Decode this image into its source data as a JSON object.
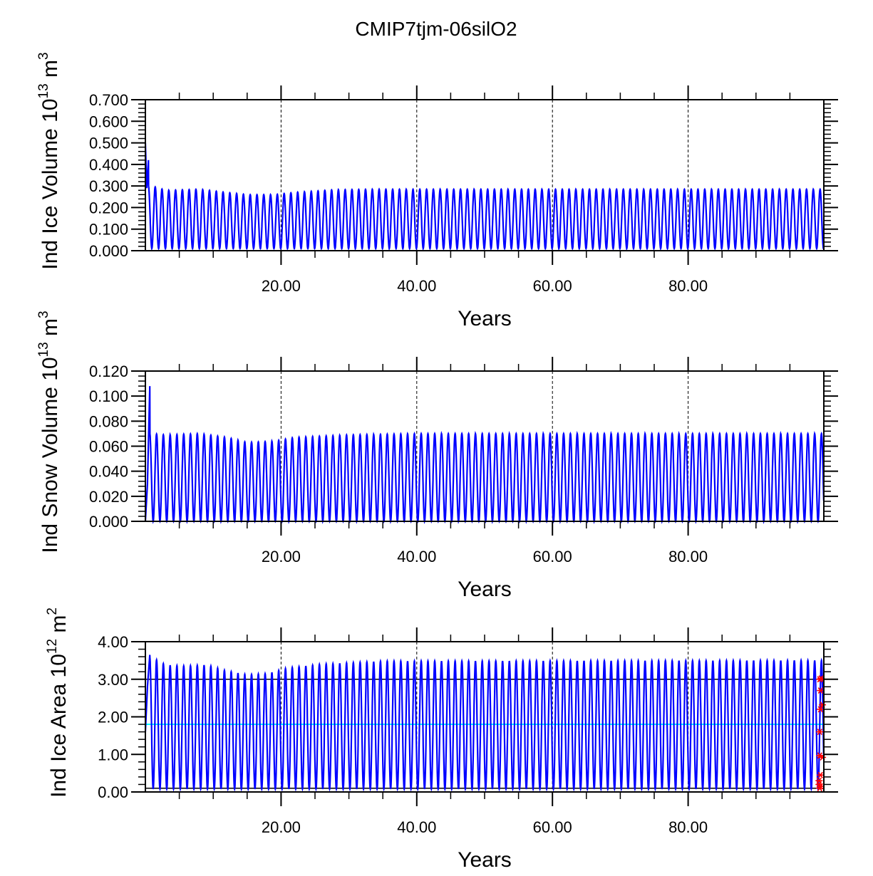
{
  "title": "CMIP7tjm-06silO2",
  "colors": {
    "series": "#0000ff",
    "reference": "#00ffff",
    "markers": "#ff0000",
    "axis": "#000000"
  },
  "chart_data": [
    {
      "type": "line",
      "title": "",
      "xlabel": "Years",
      "ylabel": "Ind Ice Volume 10",
      "ylabel_exp": "13",
      "ylabel_unit": " m",
      "ylabel_unit_exp": "3",
      "xlim": [
        0,
        100
      ],
      "ylim": [
        0,
        0.7
      ],
      "xticks": [
        20,
        40,
        60,
        80
      ],
      "xtick_labels": [
        "20.00",
        "40.00",
        "60.00",
        "80.00"
      ],
      "yticks": [
        0,
        0.1,
        0.2,
        0.3,
        0.4,
        0.5,
        0.6,
        0.7
      ],
      "ytick_labels": [
        "0.000",
        "0.100",
        "0.200",
        "0.300",
        "0.400",
        "0.500",
        "0.600",
        "0.700"
      ],
      "yminor_step": 0.02,
      "grid": "dashed vertical at major x ticks",
      "series": [
        {
          "name": "Ind Ice Volume",
          "seasonal_cycle_per_year": true,
          "start_points": [
            [
              0,
              0.5
            ],
            [
              0.2,
              0.29
            ],
            [
              0.45,
              0.42
            ]
          ],
          "annual_min": 0.01,
          "annual_max_envelope": [
            [
              1,
              0.3
            ],
            [
              3,
              0.28
            ],
            [
              8,
              0.285
            ],
            [
              12,
              0.27
            ],
            [
              15,
              0.26
            ],
            [
              19,
              0.26
            ],
            [
              22,
              0.27
            ],
            [
              28,
              0.283
            ],
            [
              35,
              0.285
            ],
            [
              100,
              0.285
            ]
          ]
        }
      ]
    },
    {
      "type": "line",
      "xlabel": "Years",
      "ylabel": "Ind Snow Volume 10",
      "ylabel_exp": "13",
      "ylabel_unit": " m",
      "ylabel_unit_exp": "3",
      "xlim": [
        0,
        100
      ],
      "ylim": [
        0,
        0.12
      ],
      "xticks": [
        20,
        40,
        60,
        80
      ],
      "xtick_labels": [
        "20.00",
        "40.00",
        "60.00",
        "80.00"
      ],
      "yticks": [
        0,
        0.02,
        0.04,
        0.06,
        0.08,
        0.1,
        0.12
      ],
      "ytick_labels": [
        "0.000",
        "0.020",
        "0.040",
        "0.060",
        "0.080",
        "0.100",
        "0.120"
      ],
      "yminor_step": 0.004,
      "grid": "dashed vertical at major x ticks",
      "series": [
        {
          "name": "Ind Snow Volume",
          "seasonal_cycle_per_year": true,
          "start_points": [
            [
              0,
              0.0
            ],
            [
              0.3,
              0.03
            ],
            [
              0.65,
              0.108
            ]
          ],
          "annual_min": 0.0,
          "annual_max_envelope": [
            [
              1,
              0.07
            ],
            [
              3,
              0.069
            ],
            [
              8,
              0.07
            ],
            [
              12,
              0.067
            ],
            [
              15,
              0.063
            ],
            [
              19,
              0.064
            ],
            [
              22,
              0.067
            ],
            [
              30,
              0.069
            ],
            [
              40,
              0.07
            ],
            [
              100,
              0.07
            ]
          ]
        }
      ]
    },
    {
      "type": "line",
      "xlabel": "Years",
      "ylabel": "Ind Ice Area 10",
      "ylabel_exp": "12",
      "ylabel_unit": " m",
      "ylabel_unit_exp": "2",
      "xlim": [
        0,
        100
      ],
      "ylim": [
        0,
        4
      ],
      "xticks": [
        20,
        40,
        60,
        80
      ],
      "xtick_labels": [
        "20.00",
        "40.00",
        "60.00",
        "80.00"
      ],
      "yticks": [
        0,
        1,
        2,
        3,
        4
      ],
      "ytick_labels": [
        "0.00",
        "1.00",
        "2.00",
        "3.00",
        "4.00"
      ],
      "yminor_step": 0.2,
      "grid": "dashed vertical at major x ticks",
      "series": [
        {
          "name": "Ind Ice Area",
          "seasonal_cycle_per_year": true,
          "start_points": [
            [
              0,
              1.6
            ],
            [
              0.3,
              2.8
            ],
            [
              0.65,
              3.65
            ]
          ],
          "annual_min": 0.08,
          "annual_max_envelope": [
            [
              1,
              3.58
            ],
            [
              3,
              3.38
            ],
            [
              6,
              3.35
            ],
            [
              9,
              3.38
            ],
            [
              12,
              3.22
            ],
            [
              15,
              3.12
            ],
            [
              18,
              3.15
            ],
            [
              21,
              3.3
            ],
            [
              26,
              3.4
            ],
            [
              35,
              3.48
            ],
            [
              100,
              3.5
            ]
          ]
        }
      ],
      "reference_lines": [
        {
          "y": 3.0,
          "color": "#000000"
        },
        {
          "y": 0.1,
          "color": "#000000"
        },
        {
          "y": 1.8,
          "color": "#00ffff"
        }
      ],
      "markers": {
        "symbol": "asterisk",
        "color": "#ff0000",
        "points": [
          [
            99.6,
            3.02
          ],
          [
            99.4,
            3.0
          ],
          [
            99.5,
            2.7
          ],
          [
            99.8,
            2.32
          ],
          [
            99.5,
            2.2
          ],
          [
            99.4,
            1.6
          ],
          [
            99.4,
            0.97
          ],
          [
            99.8,
            0.92
          ],
          [
            99.5,
            0.45
          ],
          [
            99.3,
            0.3
          ],
          [
            99.3,
            0.2
          ],
          [
            99.5,
            0.15
          ],
          [
            99.4,
            0.1
          ]
        ]
      }
    }
  ]
}
